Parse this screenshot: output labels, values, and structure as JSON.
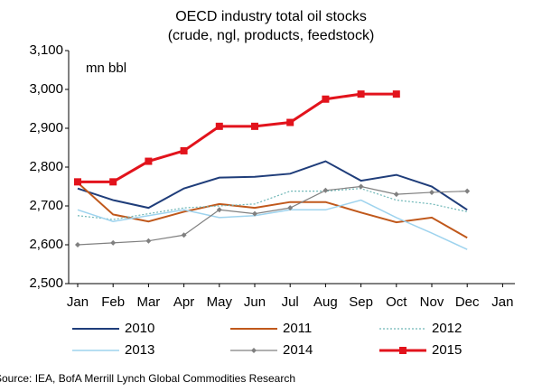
{
  "chart_data": {
    "type": "line",
    "title": "OECD industry total oil stocks",
    "subtitle": "(crude, ngl, products, feedstock)",
    "y_label": "mn bbl",
    "source": "Source: IEA, BofA Merrill Lynch Global Commodities Research",
    "categories": [
      "Jan",
      "Feb",
      "Mar",
      "Apr",
      "May",
      "Jun",
      "Jul",
      "Aug",
      "Sep",
      "Oct",
      "Nov",
      "Dec",
      "Jan"
    ],
    "ylim": [
      2500,
      3100
    ],
    "yticks": [
      {
        "value": 2500,
        "label": "2,500"
      },
      {
        "value": 2600,
        "label": "2,600"
      },
      {
        "value": 2700,
        "label": "2,700"
      },
      {
        "value": 2800,
        "label": "2,800"
      },
      {
        "value": 2900,
        "label": "2,900"
      },
      {
        "value": 3000,
        "label": "3,000"
      },
      {
        "value": 3100,
        "label": "3,100"
      }
    ],
    "grid": false,
    "series": [
      {
        "name": "2010",
        "color": "#1f3d7a",
        "width": 2,
        "dash": "none",
        "marker": "none",
        "values": [
          2745,
          2715,
          2695,
          2745,
          2773,
          2775,
          2783,
          2815,
          2765,
          2780,
          2750,
          2690,
          null
        ]
      },
      {
        "name": "2011",
        "color": "#c0581b",
        "width": 2,
        "dash": "none",
        "marker": "none",
        "values": [
          2760,
          2678,
          2660,
          2685,
          2705,
          2695,
          2710,
          2710,
          2683,
          2658,
          2670,
          2618,
          null
        ]
      },
      {
        "name": "2012",
        "color": "#6fb7b7",
        "width": 1.2,
        "dash": "2,2",
        "marker": "none",
        "values": [
          2675,
          2665,
          2680,
          2695,
          2700,
          2705,
          2738,
          2738,
          2745,
          2715,
          2705,
          2685,
          null
        ]
      },
      {
        "name": "2013",
        "color": "#9ed3ee",
        "width": 1.5,
        "dash": "none",
        "marker": "none",
        "values": [
          2690,
          2660,
          2675,
          2690,
          2670,
          2675,
          2690,
          2690,
          2715,
          2670,
          2630,
          2588,
          null
        ]
      },
      {
        "name": "2014",
        "color": "#808080",
        "width": 1.2,
        "dash": "none",
        "marker": "diamond",
        "values": [
          2600,
          2605,
          2610,
          2625,
          2690,
          2680,
          2695,
          2740,
          2750,
          2730,
          2735,
          2738,
          null
        ]
      },
      {
        "name": "2015",
        "color": "#e2131c",
        "width": 3,
        "dash": "none",
        "marker": "square",
        "values": [
          2762,
          2762,
          2815,
          2842,
          2905,
          2905,
          2915,
          2975,
          2988,
          2988,
          null,
          null,
          null
        ]
      }
    ]
  }
}
